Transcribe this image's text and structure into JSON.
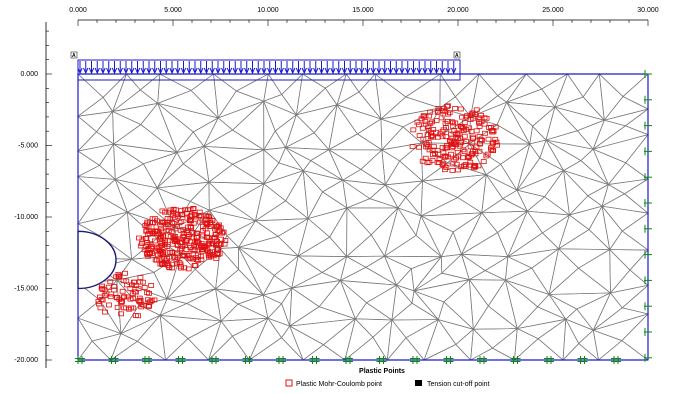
{
  "title": "Plastic Points",
  "x_axis": {
    "min": 0,
    "max": 30,
    "ticks": [
      "0.000",
      "5.000",
      "10.000",
      "15.000",
      "20.000",
      "25.000",
      "30.000"
    ],
    "tick_values": [
      0,
      5,
      10,
      15,
      20,
      25,
      30
    ]
  },
  "y_axis": {
    "min": -20,
    "max": 0,
    "ticks": [
      "0.000",
      "-5.000",
      "-10.000",
      "-15.000",
      "-20.000"
    ],
    "tick_values": [
      0,
      -5,
      -10,
      -15,
      -20
    ]
  },
  "load": {
    "label_start": "A",
    "label_end": "A",
    "from_x": 0,
    "to_x": 20,
    "color": "#1a1acc"
  },
  "tunnel": {
    "center_x": 0,
    "center_y": -13,
    "radius": 2,
    "color": "#1a1a7a"
  },
  "plastic_regions": [
    {
      "name": "tunnel-left",
      "cx": 5.5,
      "cy": -11.5,
      "rx": 2.3,
      "ry": 2.2,
      "count": 320
    },
    {
      "name": "tunnel-lower",
      "cx": 2.5,
      "cy": -15.5,
      "rx": 1.6,
      "ry": 1.6,
      "count": 80
    },
    {
      "name": "load-edge",
      "cx": 19.8,
      "cy": -4.5,
      "rx": 2.4,
      "ry": 2.3,
      "count": 210
    }
  ],
  "legend": [
    {
      "label": "Plastic Mohr-Coulomb point",
      "marker": "open-square",
      "color": "#e01010"
    },
    {
      "label": "Tension cut-off point",
      "marker": "filled-square",
      "color": "#000000"
    }
  ],
  "colors": {
    "mesh": "#7a7a7a",
    "boundary": "#1a1acc",
    "fixity": "#0a8a0a",
    "plastic": "#e01010"
  }
}
